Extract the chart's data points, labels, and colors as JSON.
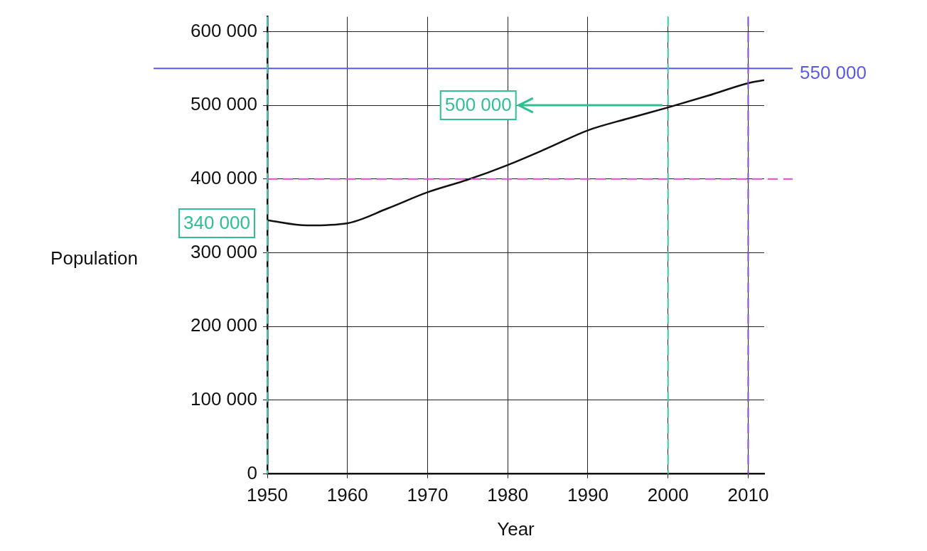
{
  "chart_data": {
    "type": "line",
    "xlabel": "Year",
    "ylabel": "Population",
    "x": [
      1950,
      1955,
      1960,
      1965,
      1970,
      1975,
      1980,
      1985,
      1990,
      1995,
      2000,
      2005,
      2010,
      2012
    ],
    "series": [
      {
        "color": "#111111",
        "values": [
          344000,
          337000,
          340000,
          360000,
          382000,
          399000,
          419000,
          442000,
          466000,
          482000,
          497000,
          513000,
          530000,
          534000
        ]
      }
    ],
    "xlim": [
      1950,
      2012
    ],
    "ylim": [
      0,
      620000
    ],
    "xticks": [
      1950,
      1960,
      1970,
      1980,
      1990,
      2000,
      2010
    ],
    "yticks": [
      0,
      {
        "value": 100000,
        "label": "100 000"
      },
      {
        "value": 200000,
        "label": "200 000"
      },
      {
        "value": 300000,
        "label": "300 000"
      },
      {
        "value": 400000,
        "label": "400 000"
      },
      {
        "value": 500000,
        "label": "500 000"
      },
      {
        "value": 600000,
        "label": "600 000"
      }
    ],
    "grid": true,
    "legend": false,
    "marker": "none",
    "line_style": "solid",
    "ref_lines": [
      {
        "axis": "y",
        "value": 550000,
        "label": "550 000",
        "color": "#5a5ae6",
        "line_style": "solid"
      },
      {
        "axis": "y",
        "value": 400000,
        "color": "#e848c8",
        "line_style": "dashed"
      },
      {
        "axis": "x",
        "value": 1950,
        "color": "#3cc8a0",
        "line_style": "dashed"
      },
      {
        "axis": "x",
        "value": 2000,
        "color": "#3cc8a0",
        "line_style": "dashed"
      },
      {
        "axis": "x",
        "value": 2010,
        "color": "#8844dd",
        "line_style": "dashed"
      }
    ],
    "annotations": [
      {
        "text": "340 000",
        "x": 1950,
        "y": 340000
      },
      {
        "text": "500 000",
        "x": 2000,
        "y": 500000
      }
    ]
  }
}
